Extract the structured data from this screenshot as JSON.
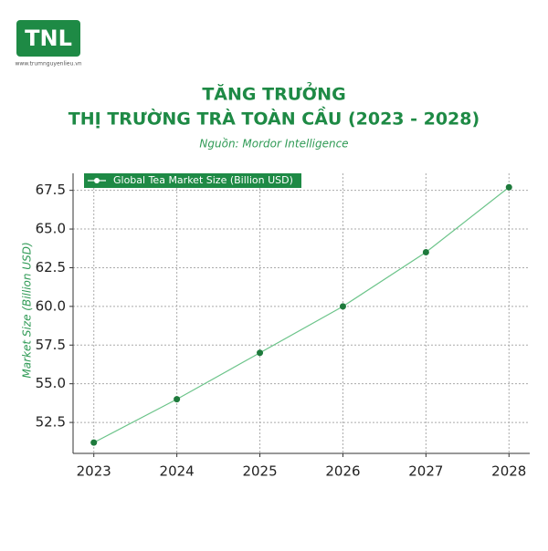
{
  "logo": {
    "text": "TNL",
    "url": "www.trumnguyenlieu.vn"
  },
  "chart_data": {
    "type": "line",
    "title": "TĂNG TRƯỞNG",
    "subtitle": "THỊ TRƯỜNG TRÀ TOÀN CẦU (2023 - 2028)",
    "source": "Nguồn: Mordor Intelligence",
    "y_label": "Market Size (Billion USD)",
    "x": [
      2023,
      2024,
      2025,
      2026,
      2027,
      2028
    ],
    "xlim": [
      2022.75,
      2028.25
    ],
    "xticks": [
      2023,
      2024,
      2025,
      2026,
      2027,
      2028
    ],
    "ylim": [
      50.5,
      68.6
    ],
    "yticks": [
      {
        "value": 52.5,
        "label": "52.5"
      },
      {
        "value": 55,
        "label": "55.0"
      },
      {
        "value": 57.5,
        "label": "57.5"
      },
      {
        "value": 60,
        "label": "60.0"
      },
      {
        "value": 62.5,
        "label": "62.5"
      },
      {
        "value": 65,
        "label": "65.0"
      },
      {
        "value": 67.5,
        "label": "67.5"
      }
    ],
    "grid": true,
    "legend": "upper-left",
    "series": [
      {
        "name": "Global Tea Market Size (Billion USD)",
        "color": "#6cc48a",
        "marker_color": "#1e7a3c",
        "values": [
          51.2,
          54.0,
          57.0,
          60.0,
          63.5,
          67.7
        ]
      }
    ]
  }
}
